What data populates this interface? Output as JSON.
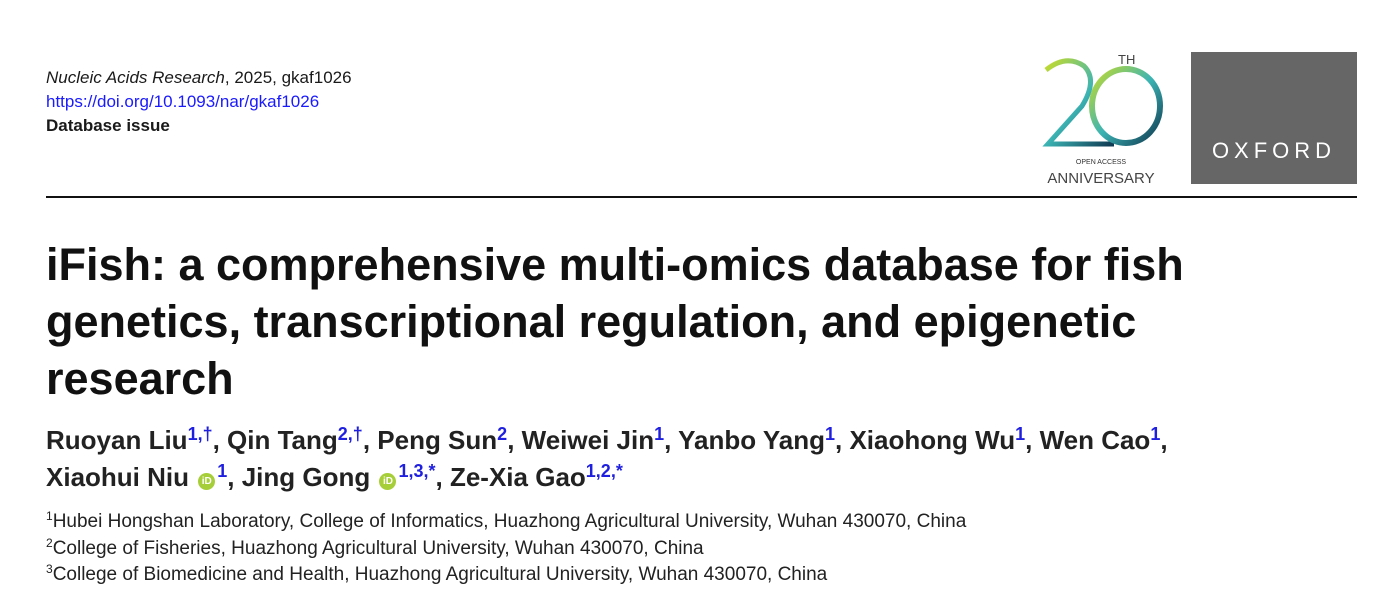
{
  "header": {
    "journal": "Nucleic Acids Research",
    "citation_rest": ", 2025, gkaf1026",
    "doi": "https://doi.org/10.1093/nar/gkaf1026",
    "issue": "Database issue"
  },
  "logos": {
    "anniversary": {
      "number": "20",
      "suffix": "TH",
      "line1": "OPEN ACCESS",
      "line2": "ANNIVERSARY"
    },
    "publisher": "OXFORD"
  },
  "title": "iFish: a comprehensive multi-omics database for fish genetics, transcriptional regulation, and epigenetic research",
  "authors": [
    {
      "name": "Ruoyan Liu",
      "sup": "1,†",
      "orcid": false
    },
    {
      "name": "Qin Tang",
      "sup": "2,†",
      "orcid": false
    },
    {
      "name": "Peng Sun",
      "sup": "2",
      "orcid": false
    },
    {
      "name": "Weiwei Jin",
      "sup": "1",
      "orcid": false
    },
    {
      "name": "Yanbo Yang",
      "sup": "1",
      "orcid": false
    },
    {
      "name": "Xiaohong Wu",
      "sup": "1",
      "orcid": false
    },
    {
      "name": "Wen Cao",
      "sup": "1",
      "orcid": false
    },
    {
      "name": "Xiaohui Niu",
      "sup": "1",
      "orcid": true
    },
    {
      "name": "Jing Gong",
      "sup": "1,3,*",
      "orcid": true
    },
    {
      "name": "Ze-Xia Gao",
      "sup": "1,2,*",
      "orcid": false
    }
  ],
  "affiliations": [
    {
      "num": "1",
      "text": "Hubei Hongshan Laboratory, College of Informatics, Huazhong Agricultural University, Wuhan 430070, China"
    },
    {
      "num": "2",
      "text": "College of Fisheries, Huazhong Agricultural University, Wuhan 430070, China"
    },
    {
      "num": "3",
      "text": "College of Biomedicine and Health, Huazhong Agricultural University, Wuhan 430070, China"
    }
  ],
  "colors": {
    "link": "#1a1aff",
    "publisher_bg": "#666667",
    "orcid": "#a6ce39"
  }
}
